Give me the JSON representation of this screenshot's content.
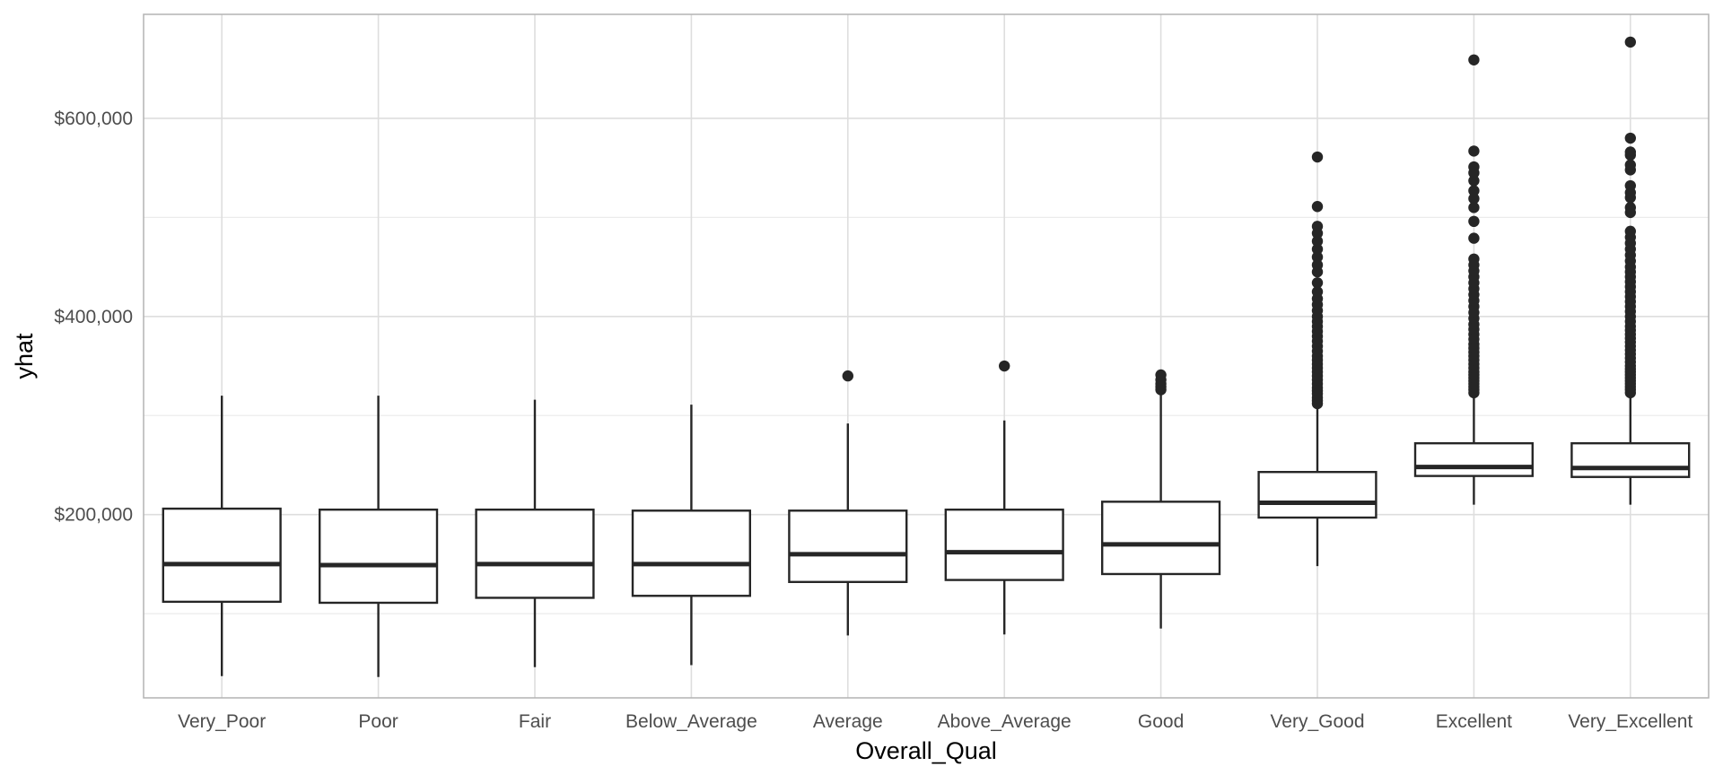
{
  "chart_data": {
    "type": "box",
    "title": "",
    "xlabel": "Overall_Qual",
    "ylabel": "yhat",
    "ylim": [
      15000,
      705000
    ],
    "y_ticks": [
      {
        "value": 200000,
        "label": "$200,000"
      },
      {
        "value": 400000,
        "label": "$400,000"
      },
      {
        "value": 600000,
        "label": "$600,000"
      }
    ],
    "y_minor_ticks": [
      100000,
      300000,
      500000
    ],
    "grid": true,
    "legend": "none",
    "box_color": "#262626",
    "background": "#ffffff",
    "grid_color": "#dedede",
    "categories": [
      "Very_Poor",
      "Poor",
      "Fair",
      "Below_Average",
      "Average",
      "Above_Average",
      "Good",
      "Very_Good",
      "Excellent",
      "Very_Excellent"
    ],
    "boxes": [
      {
        "category": "Very_Poor",
        "lower_whisker": 37000,
        "q1": 112000,
        "median": 150000,
        "q3": 206000,
        "upper_whisker": 320000,
        "outliers": []
      },
      {
        "category": "Poor",
        "lower_whisker": 36000,
        "q1": 111000,
        "median": 149000,
        "q3": 205000,
        "upper_whisker": 320000,
        "outliers": []
      },
      {
        "category": "Fair",
        "lower_whisker": 46000,
        "q1": 116000,
        "median": 150000,
        "q3": 205000,
        "upper_whisker": 316000,
        "outliers": []
      },
      {
        "category": "Below_Average",
        "lower_whisker": 48000,
        "q1": 118000,
        "median": 150000,
        "q3": 204000,
        "upper_whisker": 311000,
        "outliers": []
      },
      {
        "category": "Average",
        "lower_whisker": 78000,
        "q1": 132000,
        "median": 160000,
        "q3": 204000,
        "upper_whisker": 292000,
        "outliers": [
          340000
        ]
      },
      {
        "category": "Above_Average",
        "lower_whisker": 79000,
        "q1": 134000,
        "median": 162000,
        "q3": 205000,
        "upper_whisker": 295000,
        "outliers": [
          350000
        ]
      },
      {
        "category": "Good",
        "lower_whisker": 85000,
        "q1": 140000,
        "median": 170000,
        "q3": 213000,
        "upper_whisker": 323000,
        "outliers": [
          326000,
          329000,
          332000,
          336000,
          341000
        ]
      },
      {
        "category": "Very_Good",
        "lower_whisker": 148000,
        "q1": 197000,
        "median": 212000,
        "q3": 243000,
        "upper_whisker": 308000,
        "outliers": [
          312000,
          315000,
          318000,
          322000,
          325000,
          328000,
          332000,
          336000,
          340000,
          344000,
          348000,
          352000,
          356000,
          360000,
          365000,
          370000,
          375000,
          380000,
          385000,
          390000,
          395000,
          400000,
          406000,
          412000,
          418000,
          425000,
          434000,
          445000,
          452000,
          460000,
          468000,
          476000,
          484000,
          491000,
          511000,
          561000
        ]
      },
      {
        "category": "Excellent",
        "lower_whisker": 210000,
        "q1": 239000,
        "median": 248000,
        "q3": 272000,
        "upper_whisker": 320000,
        "outliers": [
          323000,
          326000,
          329000,
          332000,
          335000,
          338000,
          341000,
          344000,
          348000,
          352000,
          356000,
          360000,
          364000,
          368000,
          372000,
          377000,
          382000,
          387000,
          392000,
          398000,
          404000,
          410000,
          416000,
          422000,
          428000,
          434000,
          440000,
          446000,
          452000,
          458000,
          479000,
          496000,
          510000,
          519000,
          527000,
          537000,
          545000,
          551000,
          567000,
          659000
        ]
      },
      {
        "category": "Very_Excellent",
        "lower_whisker": 210000,
        "q1": 238000,
        "median": 247000,
        "q3": 272000,
        "upper_whisker": 320000,
        "outliers": [
          323000,
          326000,
          329000,
          332000,
          335000,
          338000,
          341000,
          344000,
          347000,
          350000,
          354000,
          358000,
          362000,
          366000,
          370000,
          374000,
          378000,
          382000,
          386000,
          390000,
          395000,
          400000,
          405000,
          410000,
          415000,
          420000,
          425000,
          430000,
          435000,
          440000,
          445000,
          450000,
          456000,
          462000,
          468000,
          474000,
          480000,
          486000,
          505000,
          510000,
          520000,
          525000,
          532000,
          548000,
          553000,
          563000,
          566000,
          580000,
          677000
        ]
      }
    ]
  }
}
